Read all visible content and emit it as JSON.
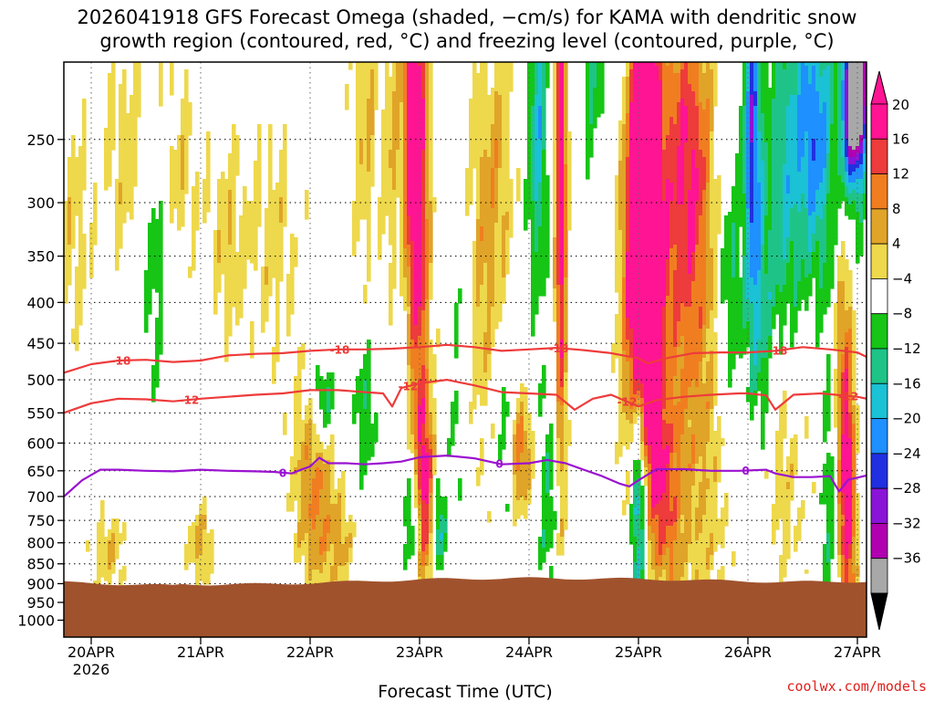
{
  "chart_data": {
    "type": "heatmap",
    "title_line1": "2026041918 GFS Forecast Omega (shaded, −cm/s) for KAMA with dendritic snow",
    "title_line2": "growth region (contoured, red, °C) and freezing level (contoured, purple, °C)",
    "xlabel": "Forecast Time (UTC)",
    "credit": "coolwx.com/models",
    "y_scale": "log-pressure (hPa), inverted",
    "y_range": [
      1050,
      200
    ],
    "y_ticks": [
      250,
      300,
      350,
      400,
      450,
      500,
      550,
      600,
      650,
      700,
      750,
      800,
      850,
      900,
      950,
      1000
    ],
    "x_range_hours": [
      -6,
      170
    ],
    "x_ticks": [
      {
        "hour": 0,
        "label": "20APR",
        "sublabel": "2026"
      },
      {
        "hour": 24,
        "label": "21APR"
      },
      {
        "hour": 48,
        "label": "22APR"
      },
      {
        "hour": 72,
        "label": "23APR"
      },
      {
        "hour": 96,
        "label": "24APR"
      },
      {
        "hour": 120,
        "label": "25APR"
      },
      {
        "hour": 144,
        "label": "26APR"
      },
      {
        "hour": 168,
        "label": "27APR"
      }
    ],
    "colorbar": {
      "labels": [
        "20",
        "16",
        "12",
        "8",
        "4",
        "−4",
        "−8",
        "−12",
        "−16",
        "−20",
        "−24",
        "−28",
        "−32",
        "−36"
      ],
      "colors": [
        "#ff1493",
        "#ee3b3b",
        "#f07e20",
        "#e0a428",
        "#eed84c",
        "#ffffff",
        "#16c516",
        "#1ec487",
        "#1bc1d4",
        "#1e90ff",
        "#2030e0",
        "#8a13d8",
        "#b000b0",
        "#a8a8a8"
      ],
      "over_color": "#ff1493",
      "under_color": "#000000"
    },
    "terrain": {
      "color": "#a0522d",
      "surface_pressure_hpa": 895
    },
    "contours": [
      {
        "name": "-18",
        "color": "#ee3b3b",
        "label_hours": [
          6.5,
          54.5,
          102.5,
          150.5
        ],
        "points": [
          [
            -6,
            490
          ],
          [
            0,
            478
          ],
          [
            6,
            473
          ],
          [
            12,
            472
          ],
          [
            18,
            475
          ],
          [
            24,
            473
          ],
          [
            30,
            466
          ],
          [
            36,
            464
          ],
          [
            42,
            463
          ],
          [
            48,
            460
          ],
          [
            54,
            458
          ],
          [
            60,
            458
          ],
          [
            66,
            457
          ],
          [
            72,
            455
          ],
          [
            78,
            452
          ],
          [
            84,
            455
          ],
          [
            90,
            460
          ],
          [
            96,
            458
          ],
          [
            102,
            456
          ],
          [
            108,
            459
          ],
          [
            114,
            463
          ],
          [
            120,
            470
          ],
          [
            122,
            477
          ],
          [
            126,
            470
          ],
          [
            132,
            463
          ],
          [
            138,
            462
          ],
          [
            144,
            462
          ],
          [
            150,
            460
          ],
          [
            156,
            455
          ],
          [
            162,
            458
          ],
          [
            168,
            462
          ],
          [
            170,
            468
          ]
        ]
      },
      {
        "name": "-12",
        "color": "#ee3b3b",
        "label_hours": [
          21.5,
          69.5,
          117.5,
          166
        ],
        "points": [
          [
            -6,
            550
          ],
          [
            0,
            535
          ],
          [
            6,
            528
          ],
          [
            12,
            529
          ],
          [
            18,
            532
          ],
          [
            24,
            528
          ],
          [
            30,
            525
          ],
          [
            36,
            522
          ],
          [
            42,
            520
          ],
          [
            48,
            515
          ],
          [
            54,
            515
          ],
          [
            60,
            518
          ],
          [
            64,
            520
          ],
          [
            66,
            540
          ],
          [
            68,
            512
          ],
          [
            72,
            505
          ],
          [
            78,
            500
          ],
          [
            84,
            508
          ],
          [
            90,
            518
          ],
          [
            96,
            520
          ],
          [
            102,
            522
          ],
          [
            106,
            545
          ],
          [
            110,
            528
          ],
          [
            114,
            522
          ],
          [
            120,
            540
          ],
          [
            124,
            530
          ],
          [
            130,
            525
          ],
          [
            136,
            522
          ],
          [
            142,
            520
          ],
          [
            144,
            520
          ],
          [
            148,
            523
          ],
          [
            150,
            545
          ],
          [
            154,
            522
          ],
          [
            160,
            520
          ],
          [
            168,
            525
          ],
          [
            170,
            528
          ]
        ]
      },
      {
        "name": "0",
        "color": "#9b12d0",
        "label_hours": [
          42,
          89.5,
          143.5
        ],
        "points": [
          [
            -6,
            700
          ],
          [
            -2,
            668
          ],
          [
            2,
            648
          ],
          [
            6,
            648
          ],
          [
            12,
            650
          ],
          [
            18,
            651
          ],
          [
            24,
            648
          ],
          [
            30,
            650
          ],
          [
            36,
            651
          ],
          [
            40,
            652
          ],
          [
            44,
            655
          ],
          [
            46,
            648
          ],
          [
            48,
            642
          ],
          [
            50,
            626
          ],
          [
            52,
            636
          ],
          [
            56,
            636
          ],
          [
            60,
            638
          ],
          [
            64,
            636
          ],
          [
            68,
            633
          ],
          [
            72,
            625
          ],
          [
            78,
            622
          ],
          [
            84,
            627
          ],
          [
            90,
            638
          ],
          [
            96,
            636
          ],
          [
            100,
            630
          ],
          [
            104,
            636
          ],
          [
            108,
            648
          ],
          [
            112,
            660
          ],
          [
            116,
            675
          ],
          [
            118,
            680
          ],
          [
            120,
            668
          ],
          [
            124,
            647
          ],
          [
            130,
            647
          ],
          [
            136,
            650
          ],
          [
            142,
            650
          ],
          [
            148,
            648
          ],
          [
            150,
            655
          ],
          [
            154,
            662
          ],
          [
            158,
            662
          ],
          [
            162,
            660
          ],
          [
            164,
            690
          ],
          [
            166,
            667
          ],
          [
            170,
            659
          ]
        ]
      }
    ]
  }
}
